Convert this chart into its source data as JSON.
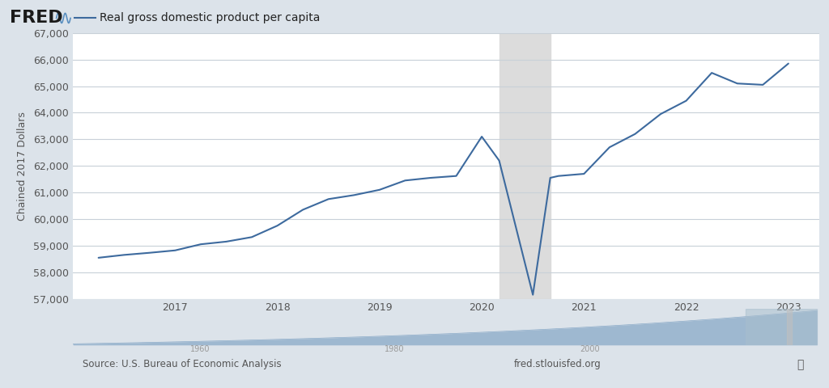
{
  "title": "Real gross domestic product per capita",
  "ylabel": "Chained 2017 Dollars",
  "source_left": "Source: U.S. Bureau of Economic Analysis",
  "source_right": "fred.stlouisfed.org",
  "background_outer": "#dce3ea",
  "background_inner": "#ffffff",
  "recession_shade_color": "#dcdcdc",
  "recession_start": 2020.17,
  "recession_end": 2020.67,
  "line_color": "#3d6a9e",
  "ylim_min": 57000,
  "ylim_max": 67000,
  "ytick_step": 1000,
  "data": [
    [
      2016.25,
      58543
    ],
    [
      2016.5,
      58650
    ],
    [
      2016.75,
      58730
    ],
    [
      2017.0,
      58820
    ],
    [
      2017.25,
      59050
    ],
    [
      2017.5,
      59150
    ],
    [
      2017.75,
      59320
    ],
    [
      2018.0,
      59750
    ],
    [
      2018.25,
      60350
    ],
    [
      2018.5,
      60750
    ],
    [
      2018.75,
      60900
    ],
    [
      2019.0,
      61100
    ],
    [
      2019.25,
      61450
    ],
    [
      2019.5,
      61550
    ],
    [
      2019.75,
      61620
    ],
    [
      2020.0,
      63100
    ],
    [
      2020.17,
      62200
    ],
    [
      2020.5,
      57150
    ],
    [
      2020.67,
      61550
    ],
    [
      2020.75,
      61620
    ],
    [
      2021.0,
      61700
    ],
    [
      2021.25,
      62700
    ],
    [
      2021.5,
      63200
    ],
    [
      2021.75,
      63950
    ],
    [
      2022.0,
      64450
    ],
    [
      2022.25,
      65500
    ],
    [
      2022.5,
      65100
    ],
    [
      2022.75,
      65050
    ],
    [
      2023.0,
      65850
    ]
  ],
  "xlim_min": 2016.0,
  "xlim_max": 2023.3,
  "xticks": [
    2017,
    2018,
    2019,
    2020,
    2021,
    2022,
    2023
  ],
  "xtick_labels": [
    "2017",
    "2018",
    "2019",
    "2020",
    "2021",
    "2022",
    "2023"
  ],
  "mini_chart_color": "#8aaac8",
  "mini_highlight_color": "#b0c4d8",
  "mini_chart_bg": "#dce3ea",
  "grid_color": "#c8d0d8",
  "tick_color": "#555555",
  "mini_recession_start": 2020.17,
  "mini_recession_end": 2020.67
}
